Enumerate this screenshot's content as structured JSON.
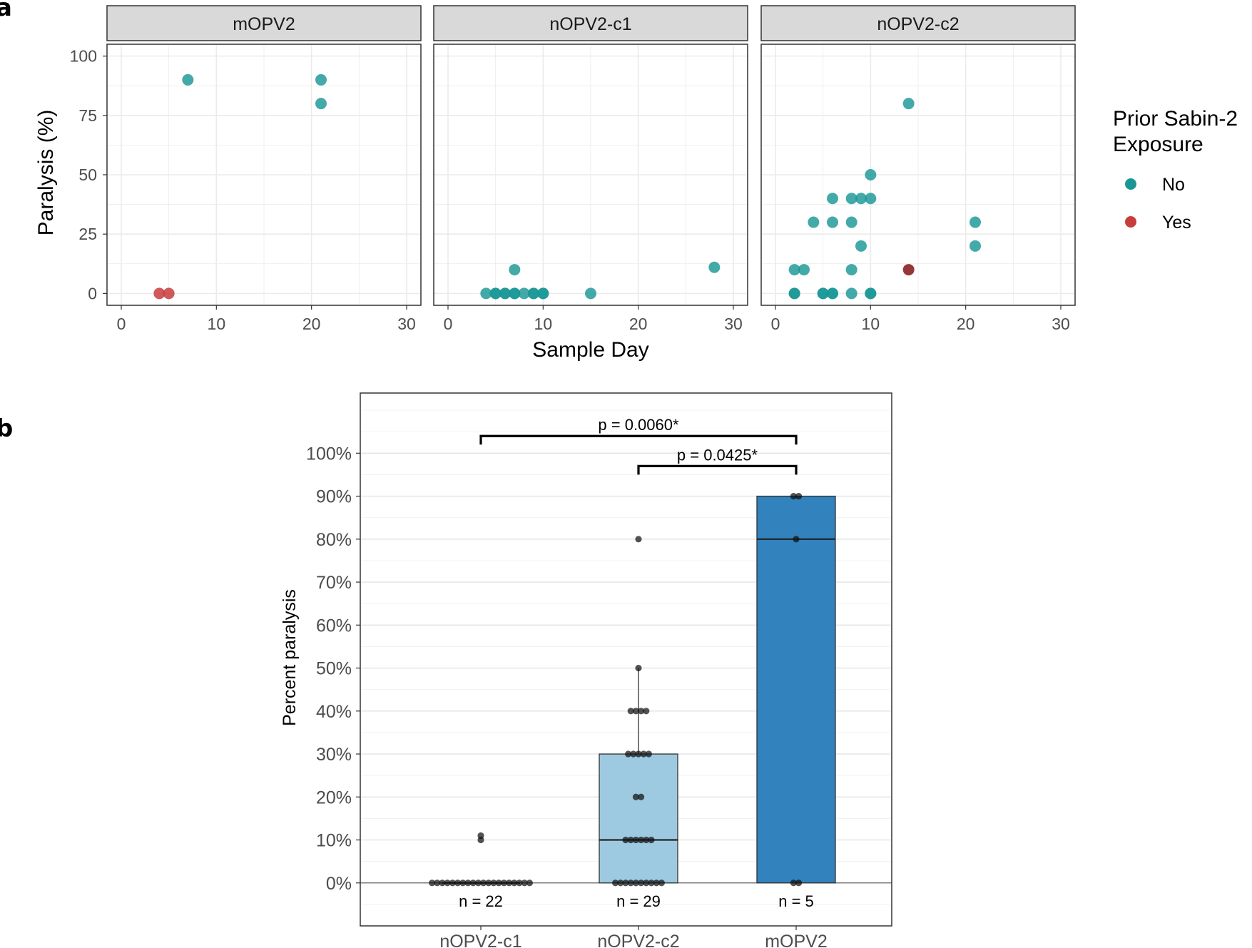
{
  "panel_labels": {
    "a": "a",
    "b": "b"
  },
  "colors": {
    "no": "#1a9696",
    "yes": "#c83c3c",
    "yes_dark": "#8b2020",
    "box_c1": "#9ecae1",
    "box_c2": "#9ecae1",
    "box_m": "#3182bd",
    "strip_bg": "#d9d9d9",
    "grid": "#ebebeb"
  },
  "chart_data": [
    {
      "type": "scatter",
      "id": "panel-a",
      "facets": [
        "mOPV2",
        "nOPV2-c1",
        "nOPV2-c2"
      ],
      "xlabel": "Sample Day",
      "ylabel": "Paralysis (%)",
      "xlim": [
        -1.5,
        31.5
      ],
      "ylim": [
        -5,
        105
      ],
      "x_ticks": [
        0,
        10,
        20,
        30
      ],
      "y_ticks": [
        0,
        25,
        50,
        75,
        100
      ],
      "legend": {
        "title_line1": "Prior Sabin-2",
        "title_line2": "Exposure",
        "entries": [
          {
            "label": "No",
            "key": "no"
          },
          {
            "label": "Yes",
            "key": "yes"
          }
        ],
        "position": "right"
      },
      "points": [
        {
          "facet": "mOPV2",
          "x": 7,
          "y": 90,
          "exposure": "No"
        },
        {
          "facet": "mOPV2",
          "x": 21,
          "y": 90,
          "exposure": "No"
        },
        {
          "facet": "mOPV2",
          "x": 21,
          "y": 80,
          "exposure": "No"
        },
        {
          "facet": "mOPV2",
          "x": 4,
          "y": 0,
          "exposure": "Yes"
        },
        {
          "facet": "mOPV2",
          "x": 5,
          "y": 0,
          "exposure": "Yes"
        },
        {
          "facet": "nOPV2-c1",
          "x": 4,
          "y": 0,
          "exposure": "No"
        },
        {
          "facet": "nOPV2-c1",
          "x": 5,
          "y": 0,
          "exposure": "No"
        },
        {
          "facet": "nOPV2-c1",
          "x": 5,
          "y": 0,
          "exposure": "No"
        },
        {
          "facet": "nOPV2-c1",
          "x": 6,
          "y": 0,
          "exposure": "No"
        },
        {
          "facet": "nOPV2-c1",
          "x": 6,
          "y": 0,
          "exposure": "No"
        },
        {
          "facet": "nOPV2-c1",
          "x": 7,
          "y": 0,
          "exposure": "No"
        },
        {
          "facet": "nOPV2-c1",
          "x": 7,
          "y": 0,
          "exposure": "No"
        },
        {
          "facet": "nOPV2-c1",
          "x": 8,
          "y": 0,
          "exposure": "No"
        },
        {
          "facet": "nOPV2-c1",
          "x": 9,
          "y": 0,
          "exposure": "No"
        },
        {
          "facet": "nOPV2-c1",
          "x": 9,
          "y": 0,
          "exposure": "No"
        },
        {
          "facet": "nOPV2-c1",
          "x": 10,
          "y": 0,
          "exposure": "No"
        },
        {
          "facet": "nOPV2-c1",
          "x": 10,
          "y": 0,
          "exposure": "No"
        },
        {
          "facet": "nOPV2-c1",
          "x": 15,
          "y": 0,
          "exposure": "No"
        },
        {
          "facet": "nOPV2-c1",
          "x": 7,
          "y": 10,
          "exposure": "No"
        },
        {
          "facet": "nOPV2-c1",
          "x": 28,
          "y": 11,
          "exposure": "No"
        },
        {
          "facet": "nOPV2-c2",
          "x": 14,
          "y": 80,
          "exposure": "No"
        },
        {
          "facet": "nOPV2-c2",
          "x": 10,
          "y": 50,
          "exposure": "No"
        },
        {
          "facet": "nOPV2-c2",
          "x": 6,
          "y": 40,
          "exposure": "No"
        },
        {
          "facet": "nOPV2-c2",
          "x": 8,
          "y": 40,
          "exposure": "No"
        },
        {
          "facet": "nOPV2-c2",
          "x": 9,
          "y": 40,
          "exposure": "No"
        },
        {
          "facet": "nOPV2-c2",
          "x": 10,
          "y": 40,
          "exposure": "No"
        },
        {
          "facet": "nOPV2-c2",
          "x": 4,
          "y": 30,
          "exposure": "No"
        },
        {
          "facet": "nOPV2-c2",
          "x": 6,
          "y": 30,
          "exposure": "No"
        },
        {
          "facet": "nOPV2-c2",
          "x": 8,
          "y": 30,
          "exposure": "No"
        },
        {
          "facet": "nOPV2-c2",
          "x": 21,
          "y": 30,
          "exposure": "No"
        },
        {
          "facet": "nOPV2-c2",
          "x": 9,
          "y": 20,
          "exposure": "No"
        },
        {
          "facet": "nOPV2-c2",
          "x": 21,
          "y": 20,
          "exposure": "No"
        },
        {
          "facet": "nOPV2-c2",
          "x": 2,
          "y": 10,
          "exposure": "No"
        },
        {
          "facet": "nOPV2-c2",
          "x": 3,
          "y": 10,
          "exposure": "No"
        },
        {
          "facet": "nOPV2-c2",
          "x": 8,
          "y": 10,
          "exposure": "No"
        },
        {
          "facet": "nOPV2-c2",
          "x": 14,
          "y": 10,
          "exposure": "Yes"
        },
        {
          "facet": "nOPV2-c2",
          "x": 2,
          "y": 0,
          "exposure": "No"
        },
        {
          "facet": "nOPV2-c2",
          "x": 2,
          "y": 0,
          "exposure": "No"
        },
        {
          "facet": "nOPV2-c2",
          "x": 5,
          "y": 0,
          "exposure": "No"
        },
        {
          "facet": "nOPV2-c2",
          "x": 5,
          "y": 0,
          "exposure": "No"
        },
        {
          "facet": "nOPV2-c2",
          "x": 6,
          "y": 0,
          "exposure": "No"
        },
        {
          "facet": "nOPV2-c2",
          "x": 6,
          "y": 0,
          "exposure": "No"
        },
        {
          "facet": "nOPV2-c2",
          "x": 8,
          "y": 0,
          "exposure": "No"
        },
        {
          "facet": "nOPV2-c2",
          "x": 10,
          "y": 0,
          "exposure": "No"
        },
        {
          "facet": "nOPV2-c2",
          "x": 10,
          "y": 0,
          "exposure": "No"
        }
      ]
    },
    {
      "type": "box",
      "id": "panel-b",
      "ylabel": "Percent paralysis",
      "ylim": [
        -10,
        114
      ],
      "y_ticks": [
        0,
        10,
        20,
        30,
        40,
        50,
        60,
        70,
        80,
        90,
        100
      ],
      "y_tick_labels": [
        "0%",
        "10%",
        "20%",
        "30%",
        "40%",
        "50%",
        "60%",
        "70%",
        "80%",
        "90%",
        "100%"
      ],
      "categories": [
        "nOPV2-c1",
        "nOPV2-c2",
        "mOPV2"
      ],
      "boxes": [
        {
          "category": "nOPV2-c1",
          "q1": 0,
          "median": 0,
          "q3": 0,
          "lower": 0,
          "upper": 0,
          "n_label": "n = 22",
          "color_key": "box_c1",
          "points": [
            0,
            0,
            0,
            0,
            0,
            0,
            0,
            0,
            0,
            0,
            0,
            0,
            0,
            0,
            0,
            0,
            0,
            0,
            0,
            0,
            10,
            11
          ]
        },
        {
          "category": "nOPV2-c2",
          "q1": 0,
          "median": 10,
          "q3": 30,
          "lower": 0,
          "upper": 50,
          "n_label": "n = 29",
          "color_key": "box_c2",
          "points": [
            0,
            0,
            0,
            0,
            0,
            0,
            0,
            0,
            0,
            0,
            10,
            10,
            10,
            10,
            10,
            10,
            20,
            20,
            30,
            30,
            30,
            30,
            30,
            40,
            40,
            40,
            40,
            50,
            80
          ]
        },
        {
          "category": "mOPV2",
          "q1": 0,
          "median": 80,
          "q3": 90,
          "lower": 0,
          "upper": 90,
          "n_label": "n = 5",
          "color_key": "box_m",
          "points": [
            0,
            80,
            90,
            90,
            0
          ]
        }
      ],
      "brackets": [
        {
          "from": "nOPV2-c1",
          "to": "mOPV2",
          "label": "p = 0.0060*",
          "y": 104
        },
        {
          "from": "nOPV2-c2",
          "to": "mOPV2",
          "label": "p = 0.0425*",
          "y": 97
        }
      ]
    }
  ]
}
